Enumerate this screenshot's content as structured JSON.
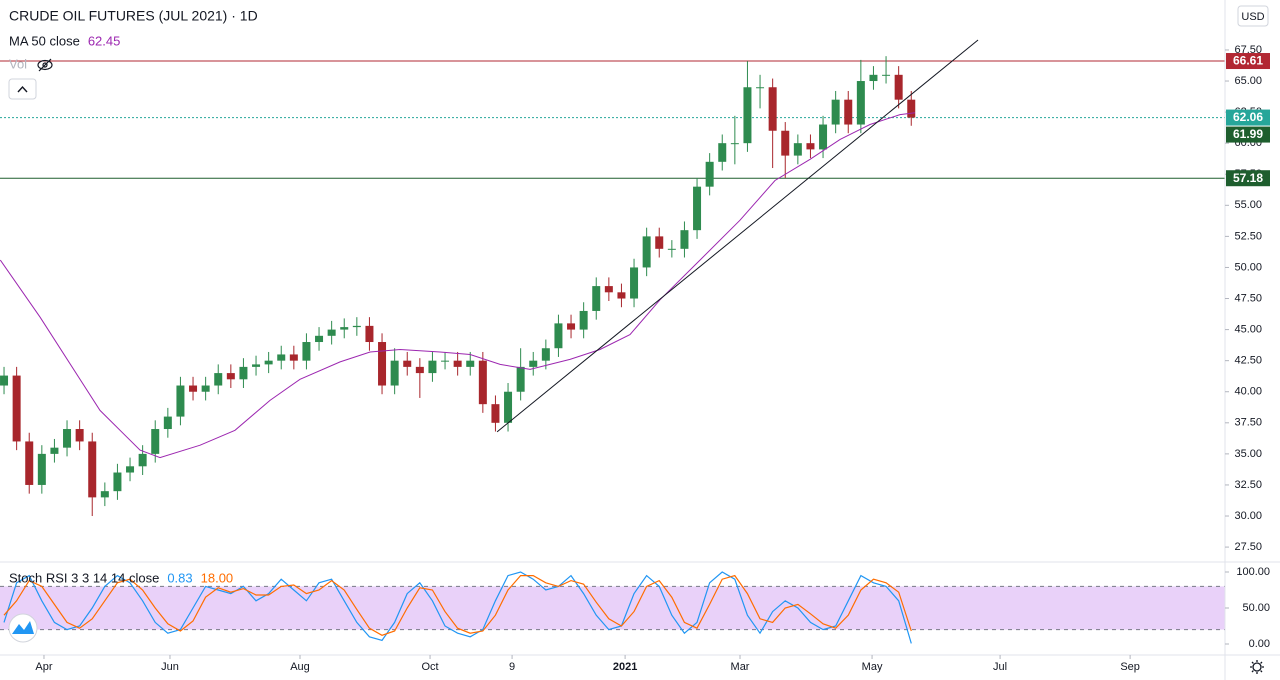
{
  "chart_data": {
    "type": "candlestick",
    "title": "CRUDE OIL FUTURES (JUL 2021) · 1D",
    "currency": "USD",
    "x": [
      0,
      1,
      2,
      3,
      4,
      5,
      6,
      7,
      8,
      9,
      10,
      11,
      12,
      13,
      14,
      15,
      16,
      17,
      18,
      19,
      20,
      21,
      22,
      23,
      24,
      25,
      26,
      27,
      28,
      29,
      30,
      31,
      32,
      33,
      34,
      35,
      36,
      37,
      38,
      39,
      40,
      41,
      42,
      43,
      44,
      45,
      46,
      47,
      48,
      49,
      50,
      51,
      52,
      53,
      54,
      55,
      56,
      57,
      58,
      59,
      60,
      61,
      62,
      63,
      64,
      65,
      66,
      67,
      68,
      69,
      70,
      71,
      72
    ],
    "open": [
      40.5,
      41.3,
      36,
      32.5,
      35,
      35.5,
      37,
      36,
      31.5,
      32,
      33.5,
      34,
      35,
      37,
      38,
      40.5,
      40,
      40.5,
      41.5,
      41,
      42,
      42.2,
      42.5,
      43,
      42.5,
      44,
      44.5,
      45,
      45.2,
      45.3,
      44,
      40.5,
      42.5,
      42,
      41.5,
      42.5,
      42.5,
      42,
      42.5,
      39,
      37.5,
      40,
      42,
      42.5,
      43.5,
      45.5,
      45,
      46.5,
      48.5,
      48,
      47.5,
      50,
      52.5,
      51.5,
      51.5,
      53,
      56.5,
      58.5,
      60,
      60,
      64.5,
      64.5,
      61,
      59,
      60,
      59.5,
      61.5,
      63.5,
      61.5,
      65,
      65.5,
      65.5,
      63.5
    ],
    "high": [
      42.0,
      42.0,
      36.7,
      35.7,
      36.2,
      37.7,
      37.7,
      36.7,
      32.7,
      34.2,
      34.7,
      35.7,
      37.7,
      38.7,
      41.2,
      41.2,
      41.2,
      42.2,
      42.2,
      42.7,
      42.9,
      43.2,
      43.7,
      43.7,
      44.7,
      45.2,
      45.7,
      45.9,
      46.0,
      46.0,
      44.7,
      43.5,
      43.2,
      42.7,
      43.2,
      43.2,
      43.2,
      43.2,
      43.2,
      39.7,
      40.7,
      43.5,
      43.2,
      44.2,
      46.2,
      46.2,
      47.2,
      49.2,
      49.2,
      48.7,
      50.7,
      53.2,
      53.2,
      52.2,
      53.7,
      57.2,
      59.2,
      60.7,
      62.2,
      66.6,
      65.5,
      65.2,
      61.7,
      60.7,
      60.7,
      62.2,
      64.2,
      64.2,
      66.7,
      66.2,
      67.0,
      66.2,
      64.2
    ],
    "low": [
      39.8,
      35.3,
      31.8,
      31.8,
      34.3,
      34.8,
      35.3,
      30.0,
      30.8,
      31.3,
      32.8,
      33.3,
      34.3,
      36.3,
      37.3,
      39.3,
      39.3,
      39.8,
      40.3,
      40.3,
      41.3,
      41.5,
      41.8,
      41.8,
      41.8,
      43.3,
      43.8,
      44.3,
      44.5,
      43.3,
      39.8,
      39.8,
      41.3,
      39.5,
      40.8,
      41.8,
      41.3,
      41.3,
      38.3,
      36.8,
      36.8,
      39.3,
      41.3,
      41.8,
      42.8,
      44.3,
      44.3,
      45.8,
      47.3,
      46.8,
      46.8,
      49.3,
      50.8,
      50.8,
      50.8,
      52.3,
      55.8,
      57.8,
      58.3,
      59.3,
      62.8,
      58.0,
      57.2,
      58.3,
      58.8,
      58.8,
      60.8,
      60.8,
      60.8,
      64.3,
      64.8,
      62.8,
      61.4
    ],
    "close": [
      41.3,
      36,
      32.5,
      35,
      35.5,
      37,
      36,
      31.5,
      32,
      33.5,
      34,
      35,
      37,
      38,
      40.5,
      40,
      40.5,
      41.5,
      41,
      42,
      42.2,
      42.5,
      43,
      42.5,
      44,
      44.5,
      45,
      45.2,
      45.3,
      44,
      40.5,
      42.5,
      42,
      41.5,
      42.5,
      42.5,
      42,
      42.5,
      39,
      37.5,
      40,
      42,
      42.5,
      43.5,
      45.5,
      45,
      46.5,
      48.5,
      48,
      47.5,
      50,
      52.5,
      51.5,
      51.5,
      53,
      56.5,
      58.5,
      60,
      60,
      64.5,
      64.5,
      61,
      59,
      60,
      59.5,
      61.5,
      63.5,
      61.5,
      65,
      65.5,
      65.5,
      63.5,
      62.06
    ],
    "up_color": "#2e8b4f",
    "down_color": "#a8262c",
    "xlim": [
      -0.32,
      96.9
    ],
    "xticks": [
      {
        "value": 3.17,
        "label": "Apr"
      },
      {
        "value": 13.17,
        "label": "Jun"
      },
      {
        "value": 23.49,
        "label": "Aug"
      },
      {
        "value": 33.81,
        "label": "Oct"
      },
      {
        "value": 40.32,
        "label": "9"
      },
      {
        "value": 49.29,
        "label": "2021"
      },
      {
        "value": 58.41,
        "label": "Mar"
      },
      {
        "value": 68.89,
        "label": "May"
      },
      {
        "value": 79.05,
        "label": "Jul"
      },
      {
        "value": 89.37,
        "label": "Sep"
      }
    ],
    "ylim": [
      26.3,
      71.52
    ],
    "yticks": [
      {
        "value": 27.5,
        "label": "27.50"
      },
      {
        "value": 30,
        "label": "30.00"
      },
      {
        "value": 32.5,
        "label": "32.50"
      },
      {
        "value": 35,
        "label": "35.00"
      },
      {
        "value": 37.5,
        "label": "37.50"
      },
      {
        "value": 40,
        "label": "40.00"
      },
      {
        "value": 42.5,
        "label": "42.50"
      },
      {
        "value": 45,
        "label": "45.00"
      },
      {
        "value": 47.5,
        "label": "47.50"
      },
      {
        "value": 50,
        "label": "50.00"
      },
      {
        "value": 52.5,
        "label": "52.50"
      },
      {
        "value": 55,
        "label": "55.00"
      },
      {
        "value": 57.5,
        "label": "57.50"
      },
      {
        "value": 60,
        "label": "60.00"
      },
      {
        "value": 62.5,
        "label": "62.50"
      },
      {
        "value": 65,
        "label": "65.00"
      },
      {
        "value": 67.5,
        "label": "67.50"
      }
    ],
    "ma": {
      "name": "MA 50 close",
      "color": "#9c27b0",
      "x": [
        -0.3,
        2.86,
        7.62,
        10.79,
        12.38,
        15.56,
        18.33,
        21.11,
        23.49,
        26.67,
        29.05,
        31.43,
        34.6,
        37.0,
        39.37,
        41.75,
        44.92,
        47.3,
        49.68,
        52.06,
        55.24,
        58.41,
        61.19,
        63.97,
        66.35,
        68.73,
        71.11,
        72.3
      ],
      "values": [
        50.6,
        46,
        38.5,
        35.3,
        34.7,
        35.7,
        36.9,
        39.3,
        41,
        42.4,
        43.2,
        43.4,
        43.2,
        43.0,
        42.2,
        41.8,
        42.6,
        43.4,
        44.6,
        47.4,
        50.6,
        53.8,
        57.0,
        58.7,
        60.3,
        61.5,
        62.3,
        62.45
      ]
    },
    "volume": {
      "name": "Vol"
    },
    "trendline": {
      "x": [
        39.13,
        77.3
      ],
      "values": [
        36.77,
        68.3
      ],
      "color": "#131722"
    },
    "price_lines": [
      {
        "value": 66.61,
        "color": "#b22833",
        "line": "solid"
      },
      {
        "value": 62.06,
        "color": "#26a69a",
        "line": "dotted"
      },
      {
        "value": 61.99,
        "color": "#1e5e2e",
        "line": "none"
      },
      {
        "value": 57.18,
        "color": "#1e5e2e",
        "line": "solid"
      }
    ],
    "stoch_rsi": {
      "type": "line",
      "name": "Stoch RSI 3 3 14 14 close",
      "ylim": [
        -15.3,
        113.9
      ],
      "yticks": [
        {
          "value": 100,
          "label": "100.00"
        },
        {
          "value": 50,
          "label": "50.00"
        },
        {
          "value": 0,
          "label": "0.00"
        }
      ],
      "band": [
        20,
        80
      ],
      "band_color": "#e3c6f7",
      "series": [
        {
          "color": "#2196f3",
          "values": [
            30,
            85,
            95,
            60,
            30,
            20,
            25,
            50,
            80,
            95,
            85,
            60,
            30,
            15,
            20,
            50,
            80,
            75,
            70,
            80,
            60,
            70,
            90,
            75,
            60,
            85,
            90,
            60,
            30,
            10,
            5,
            30,
            70,
            85,
            60,
            25,
            15,
            10,
            20,
            60,
            95,
            100,
            90,
            75,
            80,
            95,
            70,
            40,
            20,
            25,
            70,
            95,
            80,
            40,
            15,
            30,
            85,
            100,
            90,
            40,
            15,
            45,
            60,
            50,
            30,
            20,
            25,
            60,
            95,
            85,
            80,
            60,
            0.83
          ]
        },
        {
          "color": "#ff6d00",
          "values": [
            40,
            60,
            88,
            80,
            55,
            30,
            22,
            35,
            60,
            85,
            90,
            75,
            50,
            28,
            18,
            32,
            65,
            78,
            72,
            77,
            68,
            68,
            80,
            82,
            70,
            75,
            88,
            75,
            48,
            22,
            12,
            18,
            50,
            78,
            75,
            45,
            22,
            15,
            18,
            40,
            75,
            95,
            95,
            85,
            80,
            88,
            83,
            58,
            35,
            25,
            45,
            80,
            88,
            65,
            30,
            22,
            55,
            90,
            95,
            70,
            35,
            30,
            50,
            55,
            42,
            28,
            22,
            40,
            75,
            90,
            85,
            72,
            18
          ],
          "last_label": "18.00"
        }
      ]
    }
  }
}
